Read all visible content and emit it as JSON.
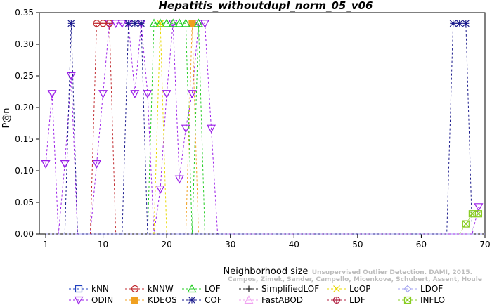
{
  "chart_data": {
    "type": "line",
    "title": "Hepatitis_withoutdupl_norm_05_v06",
    "xlabel": "Neighborhood size",
    "ylabel": "P@n",
    "xlim": [
      0,
      70
    ],
    "ylim": [
      0,
      0.35
    ],
    "xticks": [
      1,
      10,
      20,
      30,
      40,
      50,
      60,
      70
    ],
    "yticks": [
      0.0,
      0.05,
      0.1,
      0.15,
      0.2,
      0.25,
      0.3,
      0.35
    ],
    "ytick_labels": [
      "0.00",
      "0.05",
      "0.10",
      "0.15",
      "0.20",
      "0.25",
      "0.30",
      "0.35"
    ],
    "grid": false,
    "legend_position": "bottom",
    "watermark": [
      "Campos, Zimek, Sander, Campello, Micenkova, Schubert, Assent, Houle",
      "Unsupervised Outlier Detection. DAMI, 2015."
    ],
    "series": [
      {
        "name": "kNN",
        "color": "#1f3fbf",
        "marker": "square",
        "points": [
          [
            1,
            0.0
          ],
          [
            70,
            0.0
          ]
        ]
      },
      {
        "name": "ODIN",
        "color": "#9b1fe8",
        "marker": "triangle-down",
        "points": [
          [
            1,
            0.111
          ],
          [
            2,
            0.222
          ],
          [
            3,
            0.0
          ],
          [
            4,
            0.111
          ],
          [
            5,
            0.25
          ],
          [
            6,
            0.0
          ],
          [
            7,
            0.0
          ],
          [
            8,
            0.0
          ],
          [
            9,
            0.111
          ],
          [
            10,
            0.222
          ],
          [
            11,
            0.333
          ],
          [
            12,
            0.333
          ],
          [
            13,
            0.333
          ],
          [
            14,
            0.333
          ],
          [
            15,
            0.222
          ],
          [
            16,
            0.333
          ],
          [
            17,
            0.222
          ],
          [
            18,
            0.0
          ],
          [
            19,
            0.071
          ],
          [
            20,
            0.222
          ],
          [
            21,
            0.333
          ],
          [
            22,
            0.087
          ],
          [
            23,
            0.167
          ],
          [
            24,
            0.222
          ],
          [
            25,
            0.333
          ],
          [
            26,
            0.333
          ],
          [
            27,
            0.167
          ],
          [
            28,
            0.0
          ],
          [
            68,
            0.0
          ],
          [
            69,
            0.043
          ]
        ]
      },
      {
        "name": "kNNW",
        "color": "#c0282d",
        "marker": "circle",
        "points": [
          [
            8,
            0.0
          ],
          [
            9,
            0.333
          ],
          [
            10,
            0.333
          ],
          [
            11,
            0.333
          ],
          [
            12,
            0.0
          ]
        ]
      },
      {
        "name": "KDEOS",
        "color": "#f0a020",
        "marker": "square-filled",
        "points": [
          [
            23,
            0.0
          ],
          [
            24,
            0.333
          ],
          [
            25,
            0.0
          ]
        ]
      },
      {
        "name": "LOF",
        "color": "#22cc22",
        "marker": "triangle-up",
        "points": [
          [
            17,
            0.0
          ],
          [
            18,
            0.333
          ],
          [
            19,
            0.333
          ],
          [
            20,
            0.333
          ],
          [
            21,
            0.333
          ],
          [
            22,
            0.333
          ],
          [
            23,
            0.333
          ],
          [
            24,
            0.0
          ],
          [
            25,
            0.333
          ],
          [
            26,
            0.0
          ]
        ]
      },
      {
        "name": "COF",
        "color": "#1a1a8c",
        "marker": "star",
        "points": [
          [
            4,
            0.0
          ],
          [
            5,
            0.333
          ],
          [
            6,
            0.0
          ],
          [
            13,
            0.0
          ],
          [
            14,
            0.333
          ],
          [
            15,
            0.333
          ],
          [
            16,
            0.333
          ],
          [
            17,
            0.0
          ],
          [
            64,
            0.0
          ],
          [
            65,
            0.333
          ],
          [
            66,
            0.333
          ],
          [
            67,
            0.333
          ],
          [
            68,
            0.0
          ]
        ]
      },
      {
        "name": "SimplifiedLOF",
        "color": "#222222",
        "marker": "plus",
        "points": [
          [
            1,
            0.0
          ],
          [
            70,
            0.0
          ]
        ]
      },
      {
        "name": "FastABOD",
        "color": "#f0a0f0",
        "marker": "triangle-up",
        "points": [
          [
            1,
            0.0
          ],
          [
            70,
            0.0
          ]
        ]
      },
      {
        "name": "LoOP",
        "color": "#e8d800",
        "marker": "x",
        "points": [
          [
            18,
            0.0
          ],
          [
            19,
            0.333
          ],
          [
            20,
            0.0
          ]
        ]
      },
      {
        "name": "LDF",
        "color": "#b02040",
        "marker": "circle-plus",
        "points": [
          [
            1,
            0.0
          ],
          [
            70,
            0.0
          ]
        ]
      },
      {
        "name": "LDOF",
        "color": "#a0a0f0",
        "marker": "diamond",
        "points": [
          [
            1,
            0.0
          ],
          [
            70,
            0.0
          ]
        ]
      },
      {
        "name": "INFLO",
        "color": "#88cc22",
        "marker": "square-x",
        "points": [
          [
            66,
            0.0
          ],
          [
            67,
            0.016
          ],
          [
            68,
            0.032
          ],
          [
            69,
            0.032
          ]
        ]
      }
    ]
  }
}
